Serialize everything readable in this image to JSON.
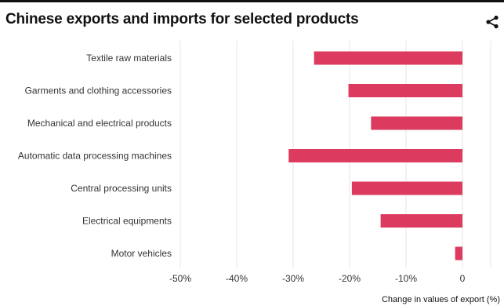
{
  "title": "Chinese exports and imports for selected products",
  "share_icon": "share-icon",
  "colors": {
    "bar": "#dc3a5e",
    "grid": "#e6e6e6",
    "rule": "#111111"
  },
  "chart_data": {
    "type": "bar",
    "orientation": "horizontal",
    "title": "Chinese exports and imports for selected products",
    "categories": [
      "Textile raw materials",
      "Garments and clothing accessories",
      "Mechanical and electrical products",
      "Automatic data processing machines",
      "Central processing units",
      "Electrical equipments",
      "Motor vehicles"
    ],
    "values": [
      -26.3,
      -20.2,
      -16.2,
      -30.8,
      -19.6,
      -14.5,
      -1.3
    ],
    "xlim": [
      -50,
      5
    ],
    "xticks": [
      -50,
      -40,
      -30,
      -20,
      -10,
      0
    ],
    "xtick_labels": [
      "-50%",
      "-40%",
      "-30%",
      "-20%",
      "-10%",
      "0"
    ],
    "xlabel": "Change in values of export (%)",
    "ylabel": "",
    "grid": true,
    "legend": "none"
  }
}
